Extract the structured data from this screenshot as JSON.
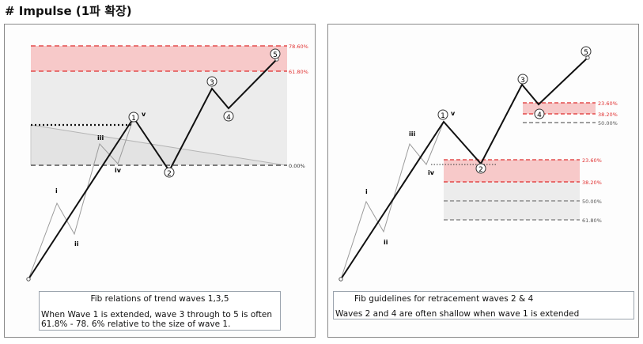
{
  "page_title": "# Impulse  (1파 확장)",
  "left_panel": {
    "fib_levels": [
      {
        "label": "78.60%",
        "color": "#e03030"
      },
      {
        "label": "61.80%",
        "color": "#e03030"
      },
      {
        "label": "0.00%",
        "color": "#333333"
      }
    ],
    "wave_labels": {
      "sub": [
        "i",
        "ii",
        "iii",
        "iv",
        "v"
      ],
      "main": [
        "1",
        "2",
        "3",
        "4",
        "5"
      ]
    },
    "caption": {
      "title": "Fib relations of trend waves 1,3,5",
      "body": "When Wave 1 is extended, wave 3 through to 5 is often 61.8% - 78. 6% relative to the size of wave 1."
    }
  },
  "right_panel": {
    "upper_fib_levels": [
      {
        "label": "23.60%",
        "color": "#e03030"
      },
      {
        "label": "38.20%",
        "color": "#e03030"
      },
      {
        "label": "50.00%",
        "color": "#555555"
      }
    ],
    "lower_fib_levels": [
      {
        "label": "23.60%",
        "color": "#e03030"
      },
      {
        "label": "38.20%",
        "color": "#e03030"
      },
      {
        "label": "50.00%",
        "color": "#555555"
      },
      {
        "label": "61.80%",
        "color": "#555555"
      }
    ],
    "wave_labels": {
      "sub": [
        "i",
        "ii",
        "iii",
        "iv",
        "v"
      ],
      "main": [
        "1",
        "2",
        "3",
        "4",
        "5"
      ]
    },
    "caption": {
      "title": "Fib guidelines for retracement waves 2 & 4",
      "body": "Waves 2 and 4 are often shallow when wave 1 is extended"
    }
  }
}
